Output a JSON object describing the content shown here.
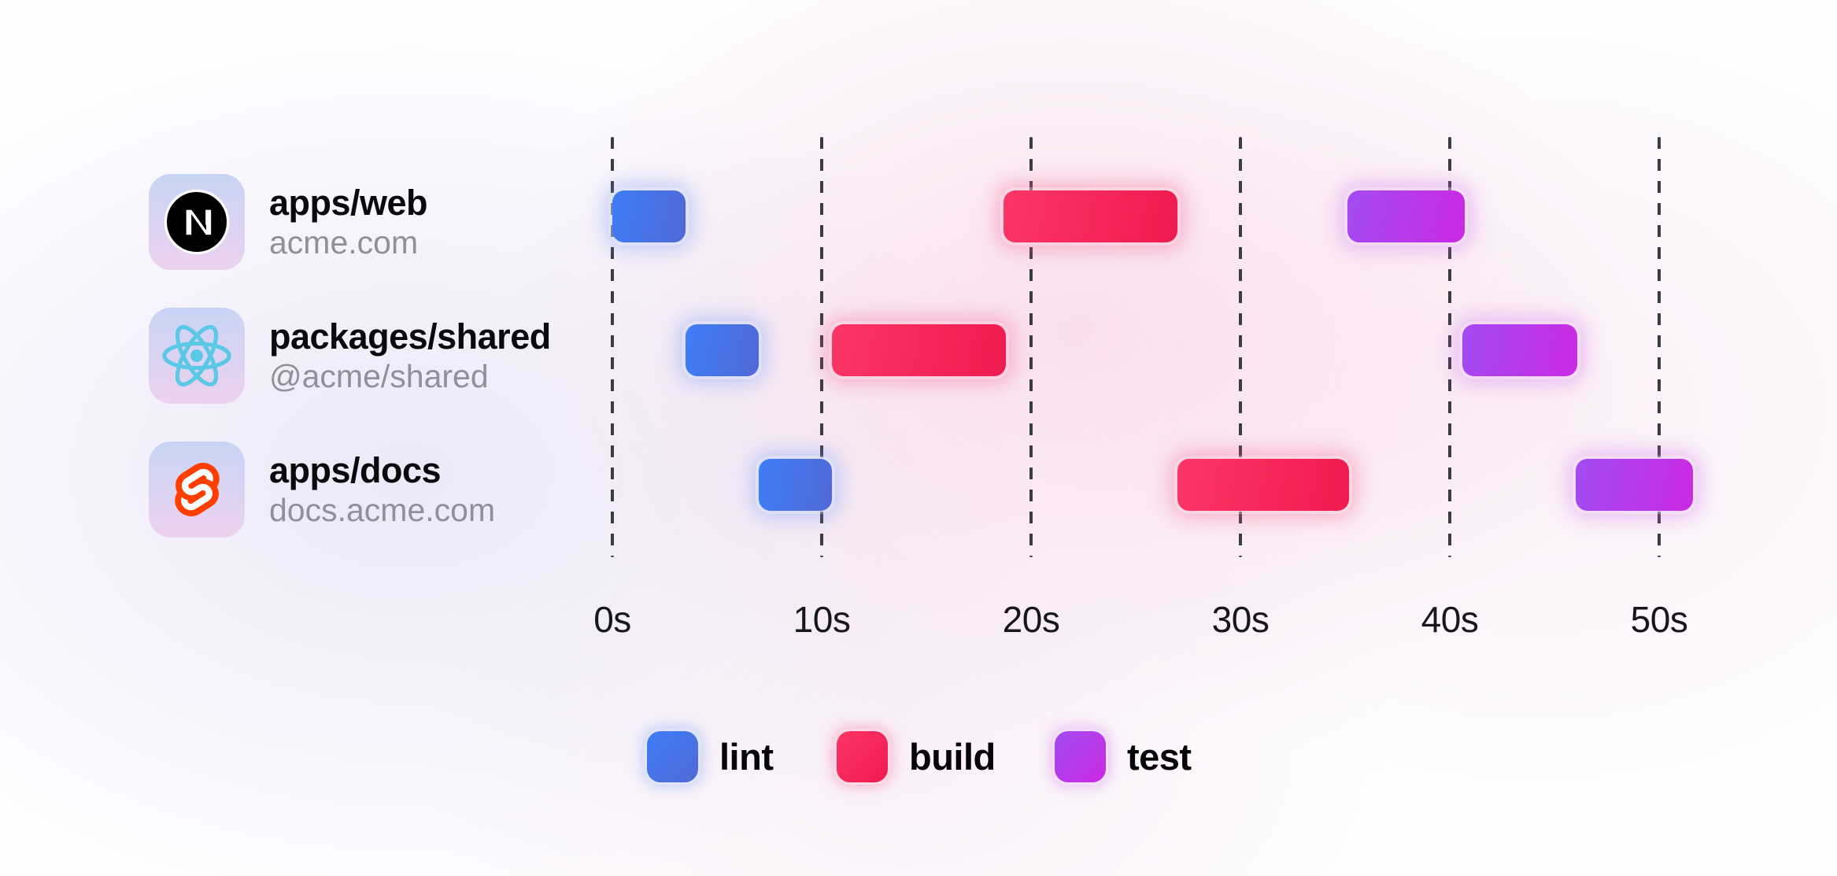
{
  "packages": [
    {
      "name": "apps/web",
      "domain": "acme.com",
      "icon": "nextjs-icon"
    },
    {
      "name": "packages/shared",
      "domain": "@acme/shared",
      "icon": "react-icon"
    },
    {
      "name": "apps/docs",
      "domain": "docs.acme.com",
      "icon": "svelte-icon"
    }
  ],
  "chart_data": {
    "type": "gantt",
    "time_unit": "seconds",
    "x_ticks": [
      {
        "value": 0,
        "label": "0s"
      },
      {
        "value": 10,
        "label": "10s"
      },
      {
        "value": 20,
        "label": "20s"
      },
      {
        "value": 30,
        "label": "30s"
      },
      {
        "value": 40,
        "label": "40s"
      },
      {
        "value": 50,
        "label": "50s"
      }
    ],
    "xlim": [
      0,
      52
    ],
    "grid": "dashed-vertical",
    "rows": [
      {
        "package": "apps/web",
        "tasks": [
          {
            "type": "lint",
            "start": 0,
            "end": 3.5
          },
          {
            "type": "build",
            "start": 18.7,
            "end": 27.0
          },
          {
            "type": "test",
            "start": 35.1,
            "end": 40.7
          }
        ]
      },
      {
        "package": "packages/shared",
        "tasks": [
          {
            "type": "lint",
            "start": 3.5,
            "end": 7.0
          },
          {
            "type": "build",
            "start": 10.5,
            "end": 18.8
          },
          {
            "type": "test",
            "start": 40.6,
            "end": 46.1
          }
        ]
      },
      {
        "package": "apps/docs",
        "tasks": [
          {
            "type": "lint",
            "start": 7.0,
            "end": 10.5
          },
          {
            "type": "build",
            "start": 27.0,
            "end": 35.2
          },
          {
            "type": "test",
            "start": 46.0,
            "end": 51.6
          }
        ]
      }
    ],
    "legend": [
      {
        "key": "lint",
        "label": "lint"
      },
      {
        "key": "build",
        "label": "build"
      },
      {
        "key": "test",
        "label": "test"
      }
    ],
    "legend_position": "bottom"
  },
  "colors": {
    "lint": {
      "from": "#3E7DF7",
      "to": "#5069D6",
      "glow": "rgba(110,150,245,0.38)"
    },
    "build": {
      "from": "#FB3666",
      "to": "#F01A4F",
      "glow": "rgba(250,90,140,0.38)"
    },
    "test": {
      "from": "#A24BF3",
      "to": "#CB29E2",
      "glow": "rgba(205,110,240,0.38)"
    },
    "grid_dash": "#3B3B42",
    "tick_text": "#17171B",
    "title_text": "#0A0A0E",
    "subtitle_text": "#8F9099",
    "tile_gradient_top": "#C8D4F5",
    "tile_gradient_bottom": "#EDD2EE",
    "nextjs_black": "#000000",
    "react_cyan": "#5BC8E5",
    "svelte_orange": "#FF3E00"
  }
}
